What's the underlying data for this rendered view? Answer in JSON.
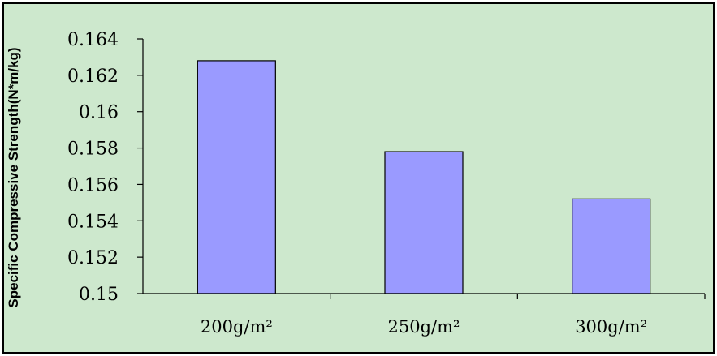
{
  "chart_data": {
    "type": "bar",
    "categories": [
      "200g/m²",
      "250g/m²",
      "300g/m²"
    ],
    "values": [
      0.1628,
      0.1578,
      0.1552
    ],
    "title": "",
    "xlabel": "",
    "ylabel": "Specific Compressive Strength(N*m/kg)",
    "ylim": [
      0.15,
      0.164
    ],
    "yticks": [
      0.15,
      0.152,
      0.154,
      0.156,
      0.158,
      0.16,
      0.162,
      0.164
    ],
    "ytick_labels": [
      "0.15",
      "0.152",
      "0.154",
      "0.156",
      "0.158",
      "0.16",
      "0.162",
      "0.164"
    ],
    "grid": false,
    "legend": "none",
    "colors": {
      "background": "#cde8cd",
      "bar_fill": "#9a9aff",
      "bar_stroke": "#000000",
      "axis": "#000000",
      "frame": "#000000"
    }
  }
}
